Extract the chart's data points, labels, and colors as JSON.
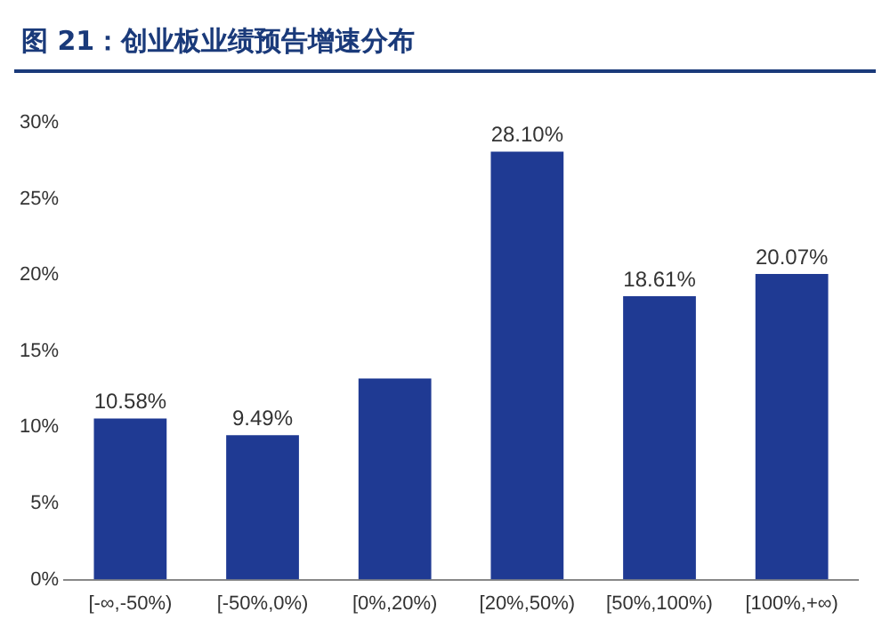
{
  "chart_data": {
    "type": "bar",
    "title": "图 21：创业板业绩预告增速分布",
    "categories": [
      "[-∞,-50%)",
      "[-50%,0%)",
      "[0%,20%)",
      "[20%,50%)",
      "[50%,100%)",
      "[100%,+∞)"
    ],
    "values": [
      10.58,
      9.49,
      13.2,
      28.1,
      18.61,
      20.07
    ],
    "value_labels": [
      "10.58%",
      "9.49%",
      null,
      "28.10%",
      "18.61%",
      "20.07%"
    ],
    "color": "#1f3a93",
    "ylim": [
      0,
      30
    ],
    "yticks": [
      {
        "value": 0,
        "label": "0%"
      },
      {
        "value": 5,
        "label": "5%"
      },
      {
        "value": 10,
        "label": "10%"
      },
      {
        "value": 15,
        "label": "15%"
      },
      {
        "value": 20,
        "label": "20%"
      },
      {
        "value": 25,
        "label": "25%"
      },
      {
        "value": 30,
        "label": "30%"
      }
    ],
    "grid": false,
    "legend": false
  }
}
